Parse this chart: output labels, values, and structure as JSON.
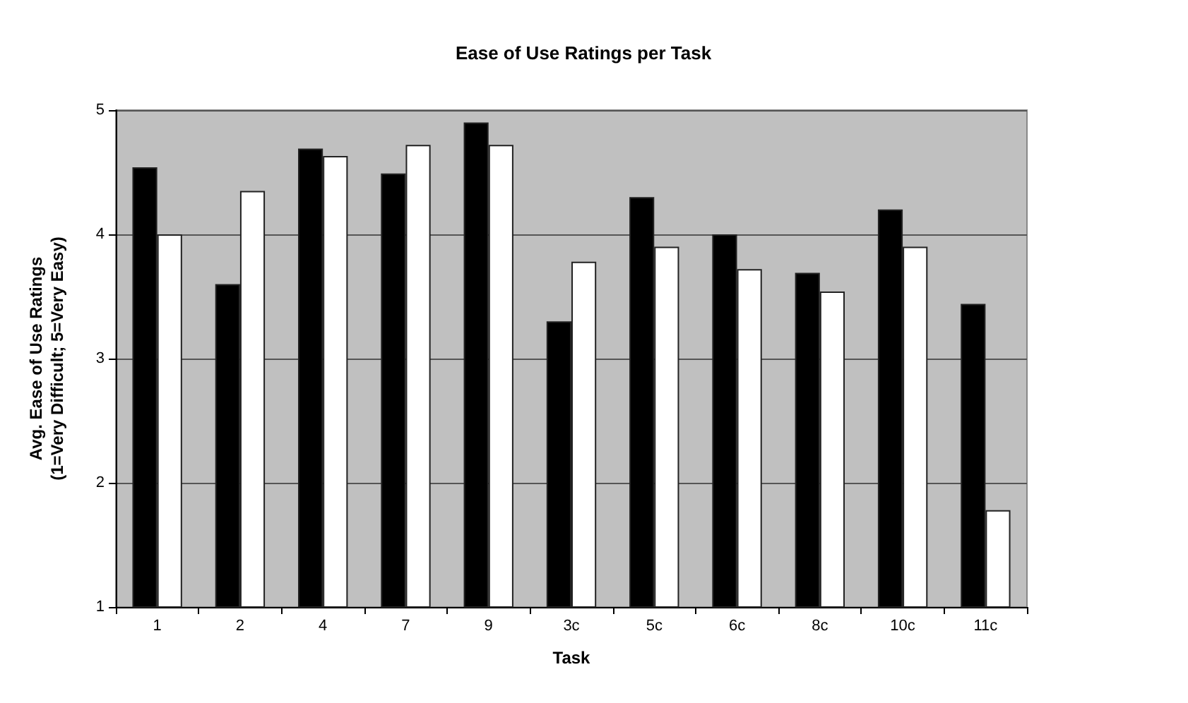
{
  "chart_data": {
    "type": "bar",
    "title": "Ease of Use Ratings per Task",
    "xlabel": "Task",
    "ylabel": "Avg. Ease of Use Ratings\n(1=Very Difficult; 5=Very Easy)",
    "categories": [
      "1",
      "2",
      "4",
      "7",
      "9",
      "3c",
      "5c",
      "6c",
      "8c",
      "10c",
      "11c"
    ],
    "series": [
      {
        "color": "#000000",
        "values": [
          4.54,
          3.6,
          4.69,
          4.49,
          4.9,
          3.3,
          4.3,
          4.0,
          3.69,
          4.2,
          3.44
        ]
      },
      {
        "color": "#ffffff",
        "values": [
          4.0,
          4.35,
          4.63,
          4.72,
          4.72,
          3.78,
          3.9,
          3.72,
          3.54,
          3.9,
          1.78
        ]
      }
    ],
    "ylim": [
      1,
      5
    ],
    "yticks": [
      1,
      2,
      3,
      4,
      5
    ],
    "grid": "y"
  }
}
